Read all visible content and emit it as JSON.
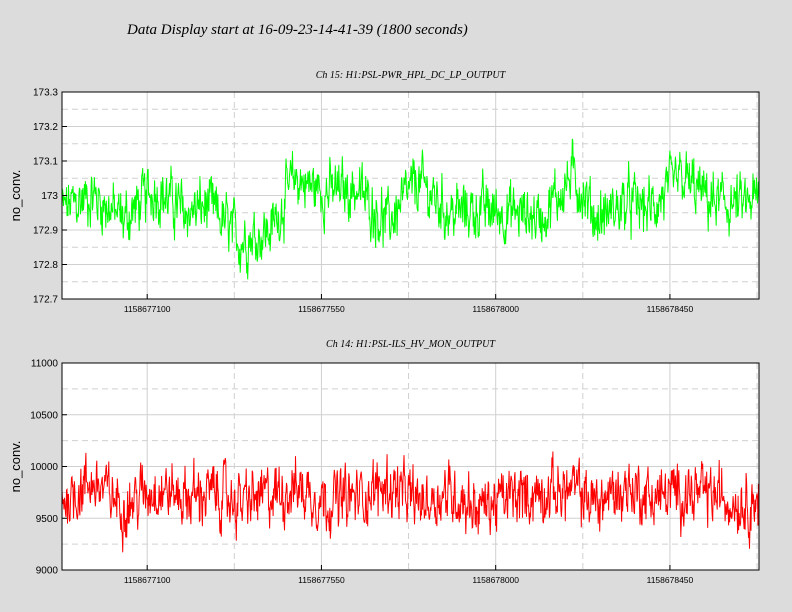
{
  "title": "Data Display start at 16-09-23-14-41-39 (1800 seconds)",
  "chart_data": [
    {
      "type": "line",
      "title": "Ch 15: H1:PSL-PWR_HPL_DC_LP_OUTPUT",
      "ylabel": "no_conv.",
      "xlabel": "",
      "ylim": [
        172.7,
        173.3
      ],
      "xlim": [
        1158676880,
        1158678680
      ],
      "yticks": [
        172.7,
        172.8,
        172.9,
        173,
        173.1,
        173.2,
        173.3
      ],
      "ytick_labels": [
        "172.7",
        "172.8",
        "172.9",
        "173",
        "173.1",
        "173.2",
        "173.3"
      ],
      "xticks": [
        1158677100,
        1158677550,
        1158678000,
        1158678450
      ],
      "xtick_labels": [
        "1158677100",
        "1158677550",
        "1158678000",
        "1158678450"
      ],
      "grid": true,
      "color": "#00ff00",
      "series": [
        {
          "x": [
            1158676880,
            1158676960,
            1158677040,
            1158677120,
            1158677200,
            1158677260,
            1158677340,
            1158677420,
            1158677480,
            1158677560,
            1158677640,
            1158677720,
            1158677800,
            1158677880,
            1158677960,
            1158678040,
            1158678120,
            1158678200,
            1158678260,
            1158678340,
            1158678400,
            1158678480,
            1158678560,
            1158678640,
            1158678680
          ],
          "values": [
            172.96,
            173.0,
            172.93,
            173.02,
            172.95,
            172.97,
            172.87,
            172.9,
            173.05,
            173.01,
            173.02,
            172.92,
            173.04,
            172.95,
            172.96,
            172.95,
            172.94,
            173.06,
            172.93,
            172.98,
            172.96,
            173.05,
            172.98,
            172.97,
            172.99
          ],
          "noise": 0.075
        }
      ]
    },
    {
      "type": "line",
      "title": "Ch 14: H1:PSL-ILS_HV_MON_OUTPUT",
      "ylabel": "no_conv.",
      "xlabel": "",
      "ylim": [
        9000,
        11000
      ],
      "xlim": [
        1158676880,
        1158678680
      ],
      "yticks": [
        9000,
        9500,
        10000,
        10500,
        11000
      ],
      "ytick_labels": [
        "9000",
        "9500",
        "10000",
        "10500",
        "11000"
      ],
      "xticks": [
        1158677100,
        1158677550,
        1158678000,
        1158678450
      ],
      "xtick_labels": [
        "1158677100",
        "1158677550",
        "1158678000",
        "1158678450"
      ],
      "grid": true,
      "color": "#ff0000",
      "series": [
        {
          "x": [
            1158676880,
            1158676960,
            1158677040,
            1158677120,
            1158677200,
            1158677260,
            1158677340,
            1158677420,
            1158677480,
            1158677560,
            1158677640,
            1158677720,
            1158677800,
            1158677880,
            1158677960,
            1158678040,
            1158678120,
            1158678200,
            1158678260,
            1158678340,
            1158678400,
            1158678480,
            1158678560,
            1158678640,
            1158678680
          ],
          "values": [
            9680,
            9850,
            9620,
            9800,
            9700,
            9750,
            9650,
            9720,
            9800,
            9680,
            9700,
            9820,
            9650,
            9750,
            9600,
            9700,
            9750,
            9780,
            9650,
            9800,
            9700,
            9750,
            9720,
            9660,
            9680
          ],
          "noise": 260
        }
      ]
    }
  ]
}
